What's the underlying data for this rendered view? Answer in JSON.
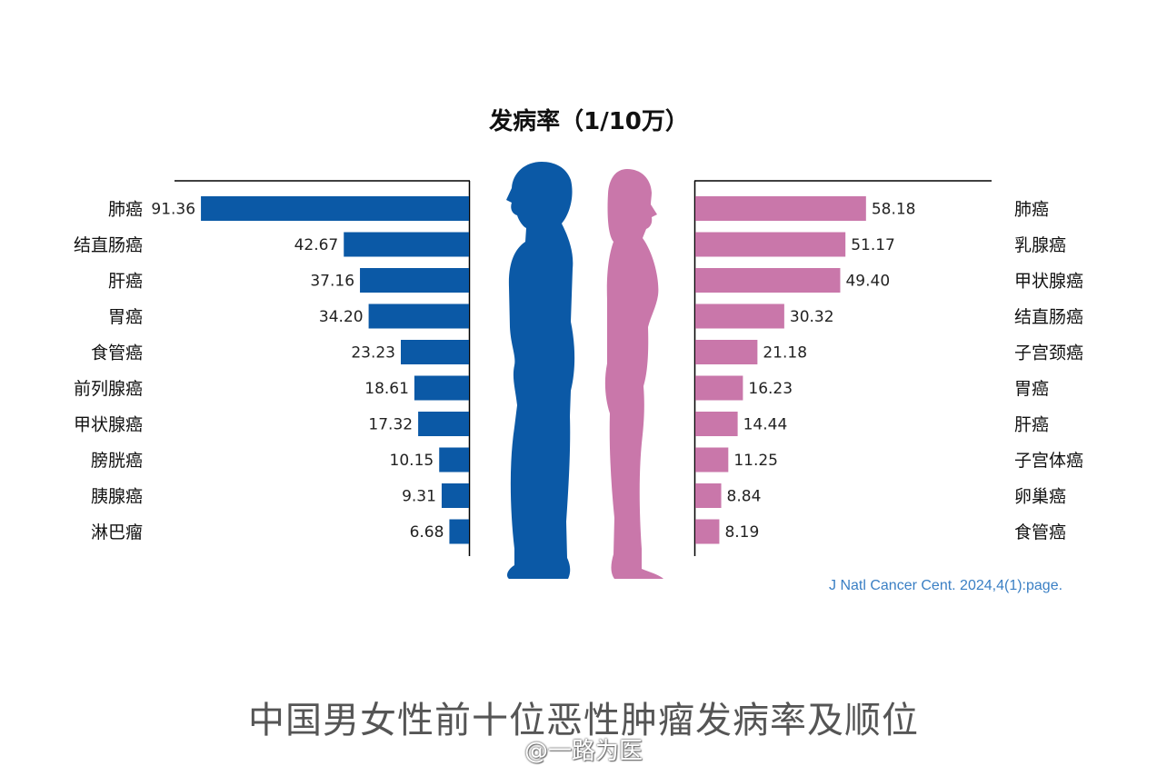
{
  "chart_data": {
    "type": "bar",
    "title": "发病率（1/10万）",
    "series": [
      {
        "categories": [
          "肺癌",
          "结直肠癌",
          "肝癌",
          "胃癌",
          "食管癌",
          "前列腺癌",
          "甲状腺癌",
          "膀胱癌",
          "胰腺癌",
          "淋巴瘤"
        ],
        "values": [
          91.36,
          42.67,
          37.16,
          34.2,
          23.23,
          18.61,
          17.32,
          10.15,
          9.31,
          6.68
        ],
        "value_labels": [
          "91.36",
          "42.67",
          "37.16",
          "34.20",
          "23.23",
          "18.61",
          "17.32",
          "10.15",
          "9.31",
          "6.68"
        ],
        "color": "#0b59a6"
      },
      {
        "categories": [
          "肺癌",
          "乳腺癌",
          "甲状腺癌",
          "结直肠癌",
          "子宫颈癌",
          "胃癌",
          "肝癌",
          "子宫体癌",
          "卵巢癌",
          "食管癌"
        ],
        "values": [
          58.18,
          51.17,
          49.4,
          30.32,
          21.18,
          16.23,
          14.44,
          11.25,
          8.84,
          8.19
        ],
        "value_labels": [
          "58.18",
          "51.17",
          "49.40",
          "30.32",
          "21.18",
          "16.23",
          "14.44",
          "11.25",
          "8.84",
          "8.19"
        ],
        "color": "#c977aa"
      }
    ],
    "xlim": [
      0,
      92
    ],
    "grid": false,
    "legend": "none"
  },
  "figures": {
    "male_color": "#0b59a6",
    "female_color": "#c977aa",
    "male_icon": "male-silhouette-icon",
    "female_icon": "female-silhouette-icon"
  },
  "source": "J Natl Cancer Cent. 2024,4(1):page.",
  "caption": "中国男女性前十位恶性肿瘤发病率及顺位",
  "watermark": "@一路为医"
}
